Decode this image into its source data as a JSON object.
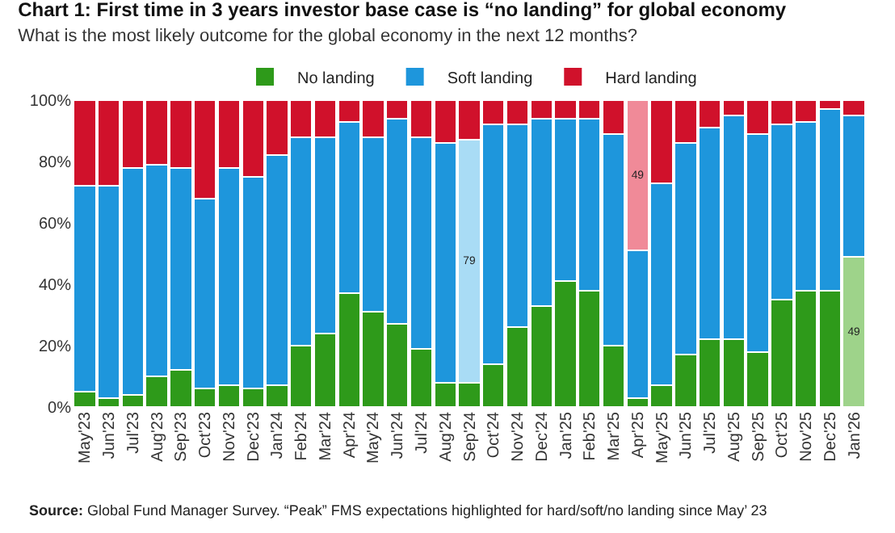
{
  "chart_data": {
    "type": "bar",
    "stacked": true,
    "title": "Chart 1: First time in 3 years investor base case is “no landing” for global economy",
    "subtitle": "What is the most likely outcome for the global economy in the next 12 months?",
    "categories": [
      "May'23",
      "Jun'23",
      "Jul'23",
      "Aug'23",
      "Sep'23",
      "Oct'23",
      "Nov'23",
      "Dec'23",
      "Jan'24",
      "Feb'24",
      "Mar'24",
      "Apr'24",
      "May'24",
      "Jun'24",
      "Jul'24",
      "Aug'24",
      "Sep'24",
      "Oct'24",
      "Nov'24",
      "Dec'24",
      "Jan'25",
      "Feb'25",
      "Mar'25",
      "Apr'25",
      "May'25",
      "Jun'25",
      "Jul'25",
      "Aug'25",
      "Sep'25",
      "Oct'25",
      "Nov'25",
      "Dec'25",
      "Jan'26"
    ],
    "series": [
      {
        "name": "No landing",
        "color": "#2e9a1a",
        "values": [
          5,
          3,
          4,
          10,
          12,
          6,
          7,
          6,
          7,
          20,
          24,
          37,
          31,
          27,
          19,
          8,
          8,
          14,
          26,
          33,
          41,
          38,
          20,
          3,
          7,
          17,
          22,
          22,
          18,
          35,
          38,
          38,
          49
        ],
        "colors": [
          null,
          null,
          null,
          null,
          null,
          null,
          null,
          null,
          null,
          null,
          null,
          null,
          null,
          null,
          null,
          null,
          null,
          null,
          null,
          null,
          null,
          null,
          null,
          null,
          null,
          null,
          null,
          null,
          null,
          null,
          null,
          null,
          "#9ed38a"
        ],
        "value_labels": [
          null,
          null,
          null,
          null,
          null,
          null,
          null,
          null,
          null,
          null,
          null,
          null,
          null,
          null,
          null,
          null,
          null,
          null,
          null,
          null,
          null,
          null,
          null,
          null,
          null,
          null,
          null,
          null,
          null,
          null,
          null,
          null,
          "49"
        ]
      },
      {
        "name": "Soft landing",
        "color": "#1e96dc",
        "values": [
          67,
          69,
          74,
          69,
          66,
          62,
          71,
          69,
          75,
          68,
          64,
          56,
          57,
          67,
          69,
          78,
          79,
          78,
          66,
          61,
          53,
          56,
          69,
          48,
          66,
          69,
          69,
          73,
          71,
          57,
          55,
          59,
          46
        ],
        "colors": [
          null,
          null,
          null,
          null,
          null,
          null,
          null,
          null,
          null,
          null,
          null,
          null,
          null,
          null,
          null,
          null,
          "#a9dcf5",
          null,
          null,
          null,
          null,
          null,
          null,
          null,
          null,
          null,
          null,
          null,
          null,
          null,
          null,
          null,
          null
        ],
        "value_labels": [
          null,
          null,
          null,
          null,
          null,
          null,
          null,
          null,
          null,
          null,
          null,
          null,
          null,
          null,
          null,
          null,
          "79",
          null,
          null,
          null,
          null,
          null,
          null,
          null,
          null,
          null,
          null,
          null,
          null,
          null,
          null,
          null,
          null
        ]
      },
      {
        "name": "Hard landing",
        "color": "#d0112b",
        "values": [
          28,
          28,
          22,
          21,
          22,
          32,
          22,
          25,
          18,
          12,
          12,
          7,
          12,
          6,
          12,
          14,
          13,
          8,
          8,
          6,
          6,
          6,
          11,
          49,
          27,
          14,
          9,
          5,
          11,
          8,
          7,
          3,
          5
        ],
        "colors": [
          null,
          null,
          null,
          null,
          null,
          null,
          null,
          null,
          null,
          null,
          null,
          null,
          null,
          null,
          null,
          null,
          null,
          null,
          null,
          null,
          null,
          null,
          null,
          "#f08a98",
          null,
          null,
          null,
          null,
          null,
          null,
          null,
          null,
          null
        ],
        "value_labels": [
          null,
          null,
          null,
          null,
          null,
          null,
          null,
          null,
          null,
          null,
          null,
          null,
          null,
          null,
          null,
          null,
          null,
          null,
          null,
          null,
          null,
          null,
          null,
          "49",
          null,
          null,
          null,
          null,
          null,
          null,
          null,
          null,
          null
        ]
      }
    ],
    "ylim": [
      0,
      100
    ],
    "yticks": [
      {
        "value": 0,
        "label": "0%"
      },
      {
        "value": 20,
        "label": "20%"
      },
      {
        "value": 40,
        "label": "40%"
      },
      {
        "value": 60,
        "label": "60%"
      },
      {
        "value": 80,
        "label": "80%"
      },
      {
        "value": 100,
        "label": "100%"
      }
    ],
    "legend": "top",
    "annotations": [
      "Source: Global Fund Manager Survey. “Peak” FMS expectations highlighted for hard/soft/no landing since May’ 23"
    ]
  }
}
